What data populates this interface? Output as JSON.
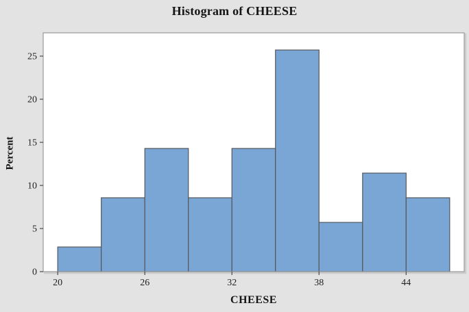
{
  "title": "Histogram of CHEESE",
  "colors": {
    "background": "#e3e3e3",
    "plot_background": "#ffffff",
    "plot_border": "#9a9a9a",
    "plot_shadow": "#cccccc",
    "bar_fill": "#7aa6d6",
    "bar_stroke": "#55565a",
    "tick_color": "#4a4a4a",
    "text_color": "#151515"
  },
  "chart_data": {
    "type": "bar",
    "subtype": "histogram",
    "title": "Histogram of CHEESE",
    "xlabel": "CHEESE",
    "ylabel": "Percent",
    "bin_edges": [
      20,
      23,
      26,
      29,
      32,
      35,
      38,
      41,
      44,
      47
    ],
    "values": [
      2.86,
      8.57,
      14.29,
      8.57,
      14.29,
      25.71,
      5.71,
      11.43,
      8.57
    ],
    "x_ticks": [
      20,
      26,
      32,
      38,
      44
    ],
    "y_ticks": [
      0,
      5,
      10,
      15,
      20,
      25
    ],
    "xlim": [
      19,
      48
    ],
    "ylim": [
      0,
      27.7
    ],
    "grid": false,
    "legend": false
  }
}
